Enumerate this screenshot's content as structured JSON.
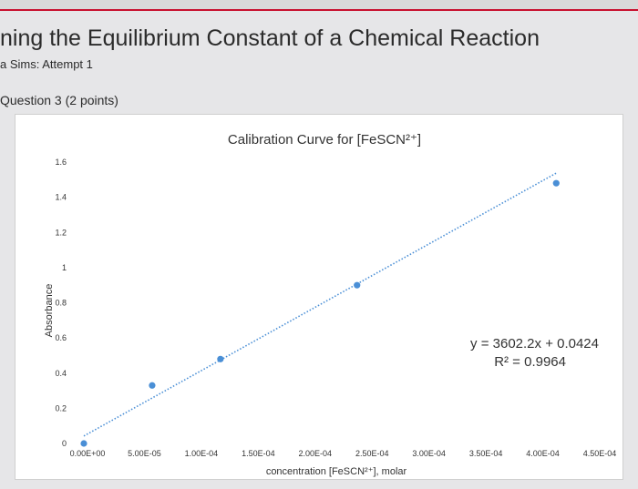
{
  "header": {
    "title": "ning the Equilibrium Constant of a Chemical Reaction",
    "subtitle": "a Sims: Attempt 1",
    "question": "Question 3 (2 points)"
  },
  "colors": {
    "accent": "#c8102e",
    "marker": "#4a8fd6",
    "trendline": "#4a8fd6"
  },
  "chart_data": {
    "type": "scatter",
    "title": "Calibration Curve for [FeSCN²⁺]",
    "xlabel": "concentration [FeSCN²⁺], molar",
    "ylabel": "Absorbance",
    "xlim": [
      0,
      0.00045
    ],
    "ylim": [
      0,
      1.6
    ],
    "x_ticks": [
      "0.00E+00",
      "5.00E-05",
      "1.00E-04",
      "1.50E-04",
      "2.00E-04",
      "2.50E-04",
      "3.00E-04",
      "3.50E-04",
      "4.00E-04",
      "4.50E-04"
    ],
    "y_ticks": [
      "0",
      "0.2",
      "0.4",
      "0.6",
      "0.8",
      "1",
      "1.2",
      "1.4",
      "1.6"
    ],
    "series": [
      {
        "points": [
          {
            "x": 0,
            "y": 0
          },
          {
            "x": 6e-05,
            "y": 0.33
          },
          {
            "x": 0.00012,
            "y": 0.48
          },
          {
            "x": 0.00024,
            "y": 0.9
          },
          {
            "x": 0.000415,
            "y": 1.48
          }
        ]
      }
    ],
    "trendline": {
      "slope": 3602.2,
      "intercept": 0.0424,
      "equation": "y = 3602.2x + 0.0424",
      "r_squared": "R² = 0.9964",
      "style": "dotted"
    },
    "grid": false
  }
}
